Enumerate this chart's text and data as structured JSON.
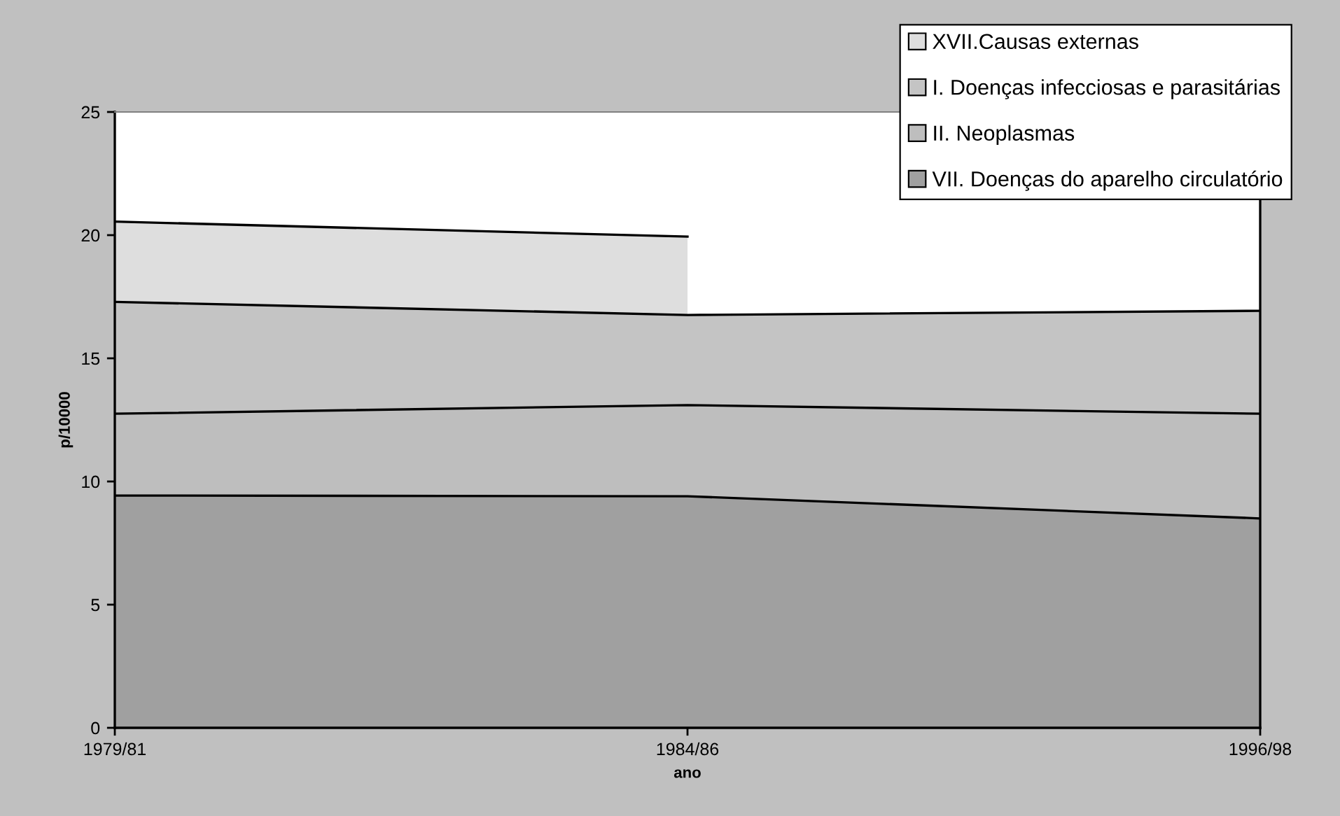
{
  "chart_data": {
    "type": "area",
    "stacked": true,
    "xlabel": "ano",
    "ylabel": "p/10000",
    "categories": [
      "1979/81",
      "1984/86",
      "1996/98"
    ],
    "series": [
      {
        "name": "VII. Doenças do aparelho circulatório",
        "color": "#a0a0a0",
        "values": [
          9.43,
          9.4,
          8.5
        ]
      },
      {
        "name": "II. Neoplasmas",
        "color": "#bebebe",
        "values": [
          3.32,
          3.7,
          4.25
        ]
      },
      {
        "name": "I. Doenças infecciosas e parasitárias",
        "color": "#c4c4c4",
        "values": [
          4.54,
          3.66,
          4.18
        ]
      },
      {
        "name": "XVII.Causas externas",
        "color": "#dedede",
        "values": [
          3.26,
          3.18,
          null
        ]
      }
    ],
    "ylim": [
      0,
      25
    ],
    "yticks": [
      0,
      5,
      10,
      15,
      20,
      25
    ],
    "grid": false,
    "legend": "top right"
  }
}
